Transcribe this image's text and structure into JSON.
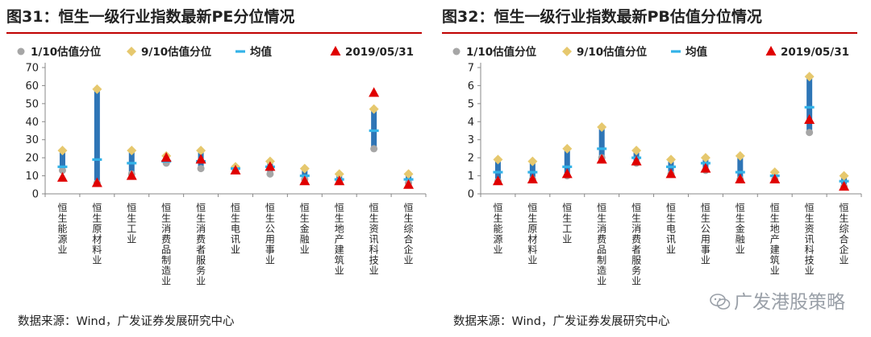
{
  "figures": [
    {
      "title": "图31：恒生一级行业指数最新PE分位情况",
      "source": "数据来源：Wind，广发证券发展研究中心"
    },
    {
      "title": "图32：恒生一级行业指数最新PB估值分位情况",
      "source": "数据来源：Wind，广发证券发展研究中心"
    }
  ],
  "watermark": "广发港股策略",
  "chart_data": [
    {
      "type": "scatter",
      "categories": [
        "恒生能源业",
        "恒生原材料业",
        "恒生工业",
        "恒生消费品制造业",
        "恒生消费者服务业",
        "恒生电讯业",
        "恒生公用事业",
        "恒生金融业",
        "恒生地产建筑业",
        "恒生资讯科技业",
        "恒生综合企业"
      ],
      "series": [
        {
          "name": "1/10估值分位",
          "values": [
            13,
            6,
            11,
            17,
            14,
            13,
            11,
            8,
            7,
            25,
            6
          ],
          "color": "#a6a6a6",
          "marker": "circle"
        },
        {
          "name": "9/10估值分位",
          "values": [
            24,
            58,
            24,
            21,
            24,
            15,
            18,
            14,
            11,
            47,
            11
          ],
          "color": "#e6c86e",
          "marker": "diamond"
        },
        {
          "name": "均值",
          "values": [
            15,
            19,
            17,
            18,
            18,
            14,
            15,
            10,
            8,
            35,
            8
          ],
          "color": "#33b2e8",
          "marker": "dash"
        },
        {
          "name": "2019/05/31",
          "values": [
            9,
            6,
            10,
            20,
            19,
            13,
            15,
            7,
            7,
            56,
            5
          ],
          "color": "#e00000",
          "marker": "triangle"
        }
      ],
      "ylim": [
        0,
        70
      ],
      "yticks": [
        0,
        10,
        20,
        30,
        40,
        50,
        60,
        70
      ],
      "range_bar_color": "#2e75b6",
      "legend_position": "top"
    },
    {
      "type": "scatter",
      "categories": [
        "恒生能源业",
        "恒生原材料业",
        "恒生工业",
        "恒生消费品制造业",
        "恒生消费者服务业",
        "恒生电讯业",
        "恒生公用事业",
        "恒生金融业",
        "恒生地产建筑业",
        "恒生资讯科技业",
        "恒生综合企业"
      ],
      "series": [
        {
          "name": "1/10估值分位",
          "values": [
            0.7,
            0.8,
            1.0,
            2.0,
            1.7,
            1.1,
            1.3,
            0.8,
            0.8,
            3.4,
            0.4
          ],
          "color": "#a6a6a6",
          "marker": "circle"
        },
        {
          "name": "9/10估值分位",
          "values": [
            1.9,
            1.8,
            2.5,
            3.7,
            2.4,
            1.9,
            2.0,
            2.1,
            1.2,
            6.5,
            1.0
          ],
          "color": "#e6c86e",
          "marker": "diamond"
        },
        {
          "name": "均值",
          "values": [
            1.2,
            1.2,
            1.5,
            2.5,
            2.0,
            1.5,
            1.7,
            1.2,
            1.0,
            4.8,
            0.7
          ],
          "color": "#33b2e8",
          "marker": "dash"
        },
        {
          "name": "2019/05/31",
          "values": [
            0.7,
            0.8,
            1.1,
            1.9,
            1.8,
            1.1,
            1.4,
            0.8,
            0.8,
            4.1,
            0.4
          ],
          "color": "#e00000",
          "marker": "triangle"
        }
      ],
      "ylim": [
        0,
        7
      ],
      "yticks": [
        0,
        1,
        2,
        3,
        4,
        5,
        6,
        7
      ],
      "range_bar_color": "#2e75b6",
      "legend_position": "top"
    }
  ]
}
